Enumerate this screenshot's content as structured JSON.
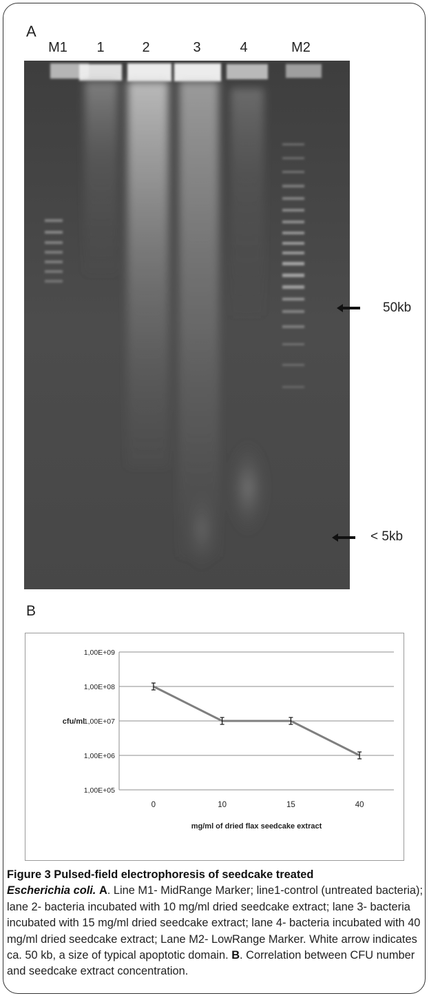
{
  "panel_a": {
    "label": "A",
    "lanes": [
      "M1",
      "1",
      "2",
      "3",
      "4",
      "M2"
    ],
    "markers": [
      {
        "label": "50kb",
        "note": "white arrow"
      },
      {
        "label": "< 5kb",
        "note": "small fragments"
      }
    ]
  },
  "panel_b": {
    "label": "B"
  },
  "chart_data": {
    "type": "line",
    "xlabel": "mg/ml of dried flax seedcake extract",
    "ylabel": "cfu/ml",
    "y_scale": "log",
    "categories": [
      "0",
      "10",
      "15",
      "40"
    ],
    "y_ticks": [
      "1,00E+05",
      "1,00E+06",
      "1,00E+07",
      "1,00E+08",
      "1,00E+09"
    ],
    "y_tick_values": [
      100000,
      1000000,
      10000000,
      100000000,
      1000000000
    ],
    "ylim": [
      100000,
      1000000000
    ],
    "series": [
      {
        "values": [
          100000000,
          10000000,
          10000000,
          1000000
        ],
        "error_bars": true,
        "color": "#7f7f7f"
      }
    ],
    "grid": true,
    "legend": "none"
  },
  "caption": {
    "title": "Figure 3 Pulsed-field electrophoresis of seedcake treated",
    "organism": "Escherichia coli.",
    "label_a": "A",
    "text_a": ". Line M1- MidRange Marker; line1-control (untreated bacteria); lane 2- bacteria incubated with 10 mg/ml dried seedcake extract; lane 3- bacteria incubated with 15 mg/ml dried seedcake extract; lane 4- bacteria incubated with 40 mg/ml dried seedcake extract; Lane M2- LowRange Marker. White arrow indicates ca. 50 kb, a size of typical apoptotic domain.",
    "label_b": "B",
    "text_b": ". Correlation between CFU number and seedcake extract concentration."
  }
}
